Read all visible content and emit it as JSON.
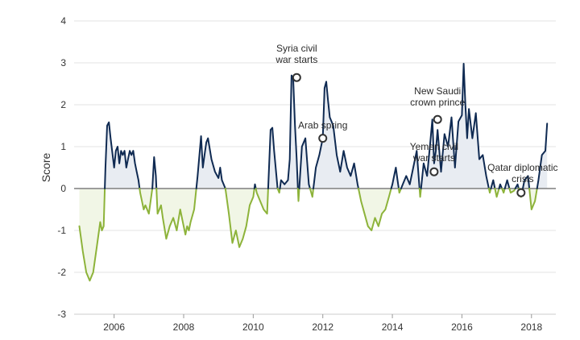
{
  "chart_data": {
    "type": "line",
    "title": "",
    "xlabel": "",
    "ylabel": "Score",
    "xlim": [
      2004.85,
      2018.7
    ],
    "ylim": [
      -3,
      4
    ],
    "yticks": [
      -3,
      -2,
      -1,
      0,
      1,
      2,
      3,
      4
    ],
    "xticks": [
      2006,
      2008,
      2010,
      2012,
      2014,
      2016,
      2018
    ],
    "xtick_labels": [
      "2006",
      "2008",
      "2010",
      "2012",
      "2014",
      "2016",
      "2018"
    ],
    "grid": "horizontal",
    "colors": {
      "positive_line": "#0f2a52",
      "negative_line": "#8db33a",
      "positive_fill": "#e8ecf2",
      "negative_fill": "#f1f6e6",
      "zero_line": "#7f7f7f",
      "grid": "#e3e3e3",
      "marker_stroke": "#333333"
    },
    "series": [
      {
        "x": [
          2005.0,
          2005.1,
          2005.2,
          2005.3,
          2005.4,
          2005.5,
          2005.6,
          2005.65,
          2005.7,
          2005.75,
          2005.8,
          2005.85,
          2005.9,
          2006.0,
          2006.05,
          2006.1,
          2006.15,
          2006.2,
          2006.25,
          2006.3,
          2006.35,
          2006.4,
          2006.45,
          2006.5,
          2006.55,
          2006.6,
          2006.65,
          2006.7,
          2006.75,
          2006.8,
          2006.85,
          2006.9,
          2007.0,
          2007.1,
          2007.15,
          2007.2,
          2007.25,
          2007.3,
          2007.35,
          2007.4,
          2007.5,
          2007.6,
          2007.7,
          2007.8,
          2007.9,
          2008.0,
          2008.05,
          2008.1,
          2008.15,
          2008.2,
          2008.3,
          2008.4,
          2008.5,
          2008.55,
          2008.6,
          2008.65,
          2008.7,
          2008.8,
          2008.9,
          2009.0,
          2009.05,
          2009.1,
          2009.2,
          2009.3,
          2009.4,
          2009.5,
          2009.6,
          2009.7,
          2009.8,
          2009.9,
          2010.0,
          2010.05,
          2010.1,
          2010.2,
          2010.3,
          2010.4,
          2010.5,
          2010.55,
          2010.6,
          2010.7,
          2010.75,
          2010.8,
          2010.9,
          2011.0,
          2011.05,
          2011.1,
          2011.15,
          2011.2,
          2011.25,
          2011.3,
          2011.4,
          2011.5,
          2011.6,
          2011.7,
          2011.8,
          2011.9,
          2012.0,
          2012.05,
          2012.1,
          2012.15,
          2012.2,
          2012.3,
          2012.4,
          2012.5,
          2012.6,
          2012.7,
          2012.8,
          2012.9,
          2013.0,
          2013.1,
          2013.2,
          2013.3,
          2013.4,
          2013.5,
          2013.6,
          2013.7,
          2013.8,
          2013.9,
          2014.0,
          2014.05,
          2014.1,
          2014.15,
          2014.2,
          2014.3,
          2014.4,
          2014.5,
          2014.6,
          2014.7,
          2014.8,
          2014.9,
          2015.0,
          2015.1,
          2015.15,
          2015.2,
          2015.25,
          2015.3,
          2015.4,
          2015.5,
          2015.6,
          2015.7,
          2015.8,
          2015.9,
          2016.0,
          2016.05,
          2016.1,
          2016.15,
          2016.2,
          2016.3,
          2016.4,
          2016.5,
          2016.6,
          2016.7,
          2016.8,
          2016.9,
          2017.0,
          2017.1,
          2017.2,
          2017.3,
          2017.4,
          2017.5,
          2017.6,
          2017.7,
          2017.8,
          2017.9,
          2018.0,
          2018.1,
          2018.2,
          2018.3,
          2018.4,
          2018.45
        ],
        "y": [
          -0.9,
          -1.5,
          -2.0,
          -2.2,
          -2.0,
          -1.4,
          -0.8,
          -1.0,
          -0.9,
          0.5,
          1.5,
          1.58,
          1.2,
          0.5,
          0.9,
          1.0,
          0.6,
          0.9,
          0.8,
          0.9,
          0.5,
          0.7,
          0.9,
          0.8,
          0.9,
          0.6,
          0.4,
          0.2,
          -0.1,
          -0.3,
          -0.5,
          -0.4,
          -0.6,
          0.0,
          0.75,
          0.3,
          -0.6,
          -0.5,
          -0.4,
          -0.7,
          -1.2,
          -0.9,
          -0.7,
          -1.0,
          -0.5,
          -0.9,
          -1.1,
          -0.9,
          -1.0,
          -0.8,
          -0.5,
          0.3,
          1.25,
          0.5,
          0.8,
          1.1,
          1.2,
          0.7,
          0.4,
          0.25,
          0.5,
          0.2,
          0.0,
          -0.6,
          -1.3,
          -1.0,
          -1.4,
          -1.2,
          -0.9,
          -0.4,
          -0.2,
          0.1,
          -0.1,
          -0.3,
          -0.5,
          -0.6,
          1.4,
          1.45,
          0.9,
          0.0,
          -0.1,
          0.2,
          0.1,
          0.2,
          0.7,
          2.7,
          2.6,
          1.5,
          0.7,
          -0.3,
          1.0,
          1.2,
          0.1,
          -0.2,
          0.5,
          0.8,
          1.2,
          2.4,
          2.55,
          2.1,
          1.7,
          1.5,
          0.8,
          0.4,
          0.9,
          0.5,
          0.3,
          0.6,
          0.1,
          -0.3,
          -0.6,
          -0.9,
          -1.0,
          -0.7,
          -0.9,
          -0.6,
          -0.5,
          -0.2,
          0.1,
          0.3,
          0.5,
          0.2,
          -0.1,
          0.1,
          0.3,
          0.1,
          0.5,
          0.9,
          -0.2,
          0.6,
          0.3,
          1.2,
          1.65,
          0.6,
          0.9,
          1.4,
          0.4,
          1.3,
          1.0,
          1.7,
          0.5,
          1.6,
          1.75,
          2.98,
          2.0,
          1.2,
          1.9,
          1.2,
          1.8,
          0.7,
          0.8,
          0.3,
          -0.1,
          0.2,
          -0.2,
          0.1,
          -0.1,
          0.2,
          -0.1,
          -0.05,
          0.1,
          -0.2,
          0.2,
          0.3,
          -0.5,
          -0.3,
          0.2,
          0.8,
          0.9,
          1.55
        ]
      }
    ],
    "annotations": [
      {
        "lines": [
          "Syria civil",
          "war starts"
        ],
        "x": 2011.25,
        "y": 2.65
      },
      {
        "lines": [
          "Arab spring"
        ],
        "x": 2012.0,
        "y": 1.2
      },
      {
        "lines": [
          "New Saudi",
          "crown prince"
        ],
        "x": 2015.3,
        "y": 1.65
      },
      {
        "lines": [
          "Yemen civil",
          "war starts"
        ],
        "x": 2015.2,
        "y": 0.4
      },
      {
        "lines": [
          "Qatar diplomatic",
          "crisis"
        ],
        "x": 2017.7,
        "y": -0.1
      }
    ]
  }
}
